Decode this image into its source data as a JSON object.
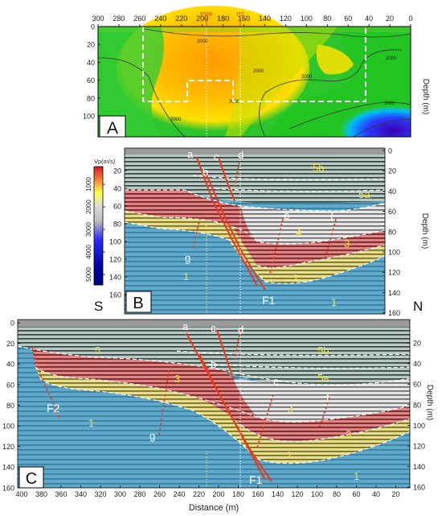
{
  "panel_a": {
    "letter": "A",
    "top_ticks": [
      "300",
      "280",
      "260",
      "240",
      "220",
      "200",
      "180",
      "160",
      "140",
      "120",
      "100",
      "80",
      "60",
      "40",
      "20",
      "0"
    ],
    "left_ticks": [
      "0",
      "20",
      "40",
      "60",
      "80",
      "100"
    ],
    "markers": [
      "PRR",
      "P2"
    ],
    "contour_labels": [
      "2000",
      "2000",
      "2000",
      "2000",
      "2000",
      "2000",
      "3000"
    ],
    "right_axis_title": "Depth (m)"
  },
  "colorbar": {
    "title": "Vp(m/s)",
    "ticks": [
      "1000",
      "2000",
      "3000",
      "4000",
      "5000"
    ]
  },
  "panel_b": {
    "letter": "B",
    "left_ticks": [
      "20",
      "40",
      "60",
      "80",
      "100",
      "120",
      "140",
      "160"
    ],
    "right_ticks": [
      "0",
      "20",
      "40",
      "60",
      "80",
      "100",
      "120",
      "140",
      "160"
    ],
    "right_axis_title": "Depth (m)",
    "corner_left": "S",
    "corner_right": "N",
    "fault_labels": [
      "a",
      "b",
      "c",
      "d",
      "e",
      "f",
      "g"
    ],
    "unit_labels": [
      "5b",
      "5a",
      "4",
      "3",
      "2",
      "1",
      "1"
    ],
    "fault_name": "F1"
  },
  "panel_c": {
    "letter": "C",
    "left_ticks": [
      "0",
      "20",
      "40",
      "60",
      "80",
      "100",
      "120",
      "140",
      "160"
    ],
    "right_ticks": [
      "20",
      "40",
      "60",
      "80",
      "100",
      "120",
      "140",
      "160"
    ],
    "bottom_ticks": [
      "400",
      "380",
      "360",
      "340",
      "320",
      "300",
      "280",
      "260",
      "240",
      "220",
      "200",
      "180",
      "160",
      "140",
      "120",
      "100",
      "80",
      "60",
      "40",
      "20"
    ],
    "x_axis_title": "Distance (m)",
    "right_axis_title": "Depth (m)",
    "fault_labels": [
      "a",
      "c",
      "d",
      "b",
      "e",
      "f",
      "g"
    ],
    "unit_labels": [
      "5",
      "5b",
      "5a",
      "3",
      "4",
      "3",
      "2",
      "1",
      "1"
    ],
    "fault_names": [
      "F2",
      "F1"
    ]
  }
}
